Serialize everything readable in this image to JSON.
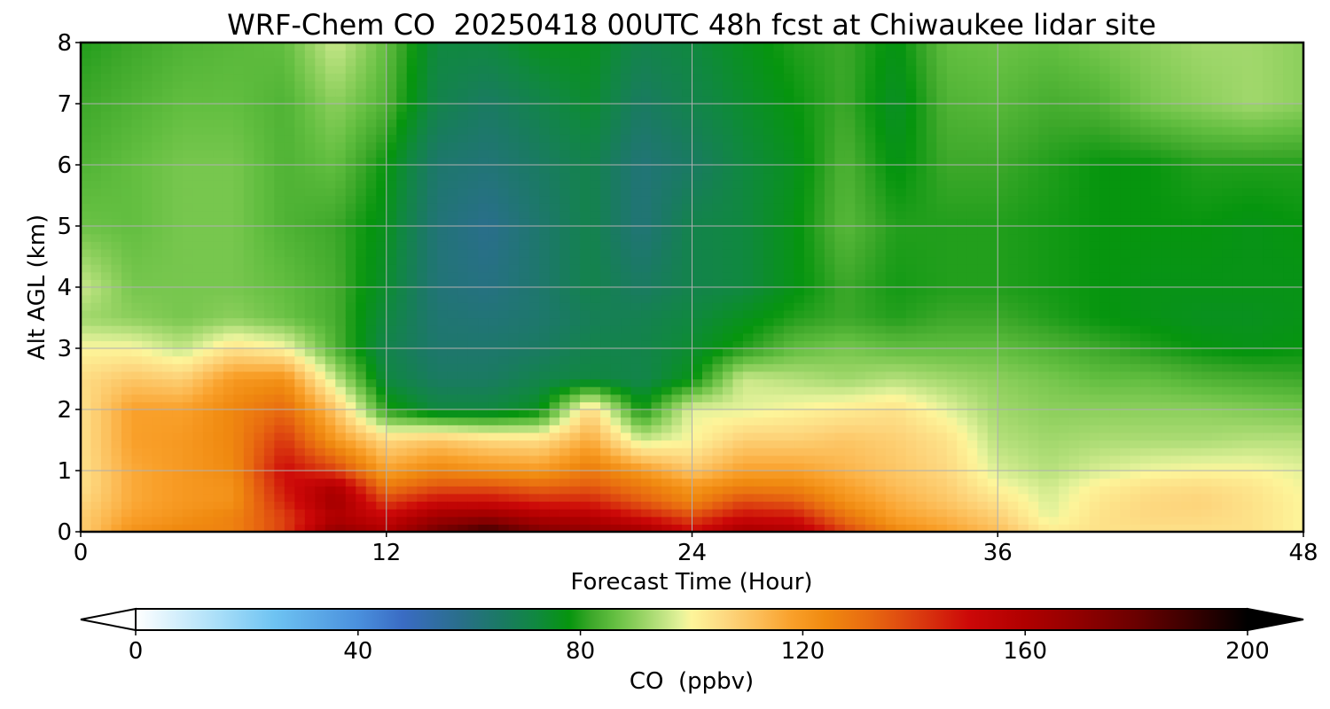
{
  "chart_data": {
    "type": "heatmap",
    "title": "WRF-Chem CO  20250418 00UTC 48h fcst at Chiwaukee lidar site",
    "xlabel": "Forecast Time (Hour)",
    "ylabel": "Alt AGL (km)",
    "xlim": [
      0,
      48
    ],
    "ylim": [
      0,
      8
    ],
    "xticks": [
      0,
      12,
      24,
      36,
      48
    ],
    "xtick_labels": [
      "0",
      "12",
      "24",
      "36",
      "48"
    ],
    "yticks": [
      0,
      1,
      2,
      3,
      4,
      5,
      6,
      7,
      8
    ],
    "ytick_labels": [
      "0",
      "1",
      "2",
      "3",
      "4",
      "5",
      "6",
      "7",
      "8"
    ],
    "grid": true,
    "x_hours": [
      0,
      2,
      4,
      6,
      8,
      10,
      12,
      14,
      16,
      18,
      20,
      22,
      24,
      26,
      28,
      30,
      32,
      34,
      36,
      38,
      40,
      42,
      44,
      46,
      48
    ],
    "z_km": [
      0,
      0.25,
      0.5,
      0.75,
      1,
      1.5,
      2,
      2.5,
      3,
      3.5,
      4,
      5,
      6,
      7,
      8
    ],
    "values_ppbv": [
      [
        108,
        122,
        125,
        126,
        140,
        170,
        160,
        178,
        190,
        175,
        170,
        165,
        150,
        164,
        160,
        140,
        125,
        118,
        112,
        102,
        104,
        104,
        104,
        104,
        100
      ],
      [
        108,
        118,
        122,
        126,
        140,
        160,
        152,
        165,
        168,
        160,
        158,
        148,
        138,
        150,
        148,
        130,
        118,
        114,
        108,
        98,
        104,
        106,
        106,
        104,
        100
      ],
      [
        106,
        116,
        120,
        122,
        145,
        165,
        140,
        150,
        150,
        145,
        145,
        135,
        125,
        138,
        135,
        122,
        115,
        110,
        104,
        97,
        103,
        106,
        107,
        104,
        100
      ],
      [
        104,
        116,
        120,
        122,
        148,
        160,
        128,
        136,
        136,
        132,
        135,
        128,
        120,
        126,
        125,
        118,
        112,
        108,
        100,
        96,
        101,
        104,
        105,
        103,
        99
      ],
      [
        104,
        116,
        120,
        124,
        150,
        140,
        118,
        125,
        122,
        120,
        128,
        120,
        110,
        118,
        118,
        114,
        110,
        106,
        97,
        94,
        97,
        99,
        100,
        100,
        98
      ],
      [
        104,
        118,
        120,
        125,
        142,
        120,
        106,
        110,
        106,
        105,
        116,
        96,
        100,
        108,
        108,
        110,
        108,
        104,
        94,
        92,
        93,
        93,
        93,
        94,
        94
      ],
      [
        104,
        118,
        118,
        125,
        132,
        110,
        80,
        72,
        72,
        76,
        106,
        78,
        98,
        98,
        100,
        102,
        104,
        98,
        92,
        90,
        90,
        90,
        90,
        89,
        88
      ],
      [
        105,
        110,
        108,
        120,
        122,
        95,
        72,
        66,
        66,
        70,
        72,
        70,
        77,
        96,
        94,
        92,
        94,
        92,
        90,
        88,
        86,
        86,
        84,
        83,
        82
      ],
      [
        100,
        100,
        95,
        104,
        100,
        84,
        70,
        64,
        64,
        66,
        70,
        70,
        74,
        80,
        86,
        88,
        86,
        86,
        86,
        84,
        82,
        80,
        78,
        77,
        78
      ],
      [
        92,
        90,
        88,
        90,
        87,
        83,
        72,
        63,
        62,
        64,
        68,
        69,
        72,
        76,
        80,
        82,
        80,
        82,
        82,
        80,
        78,
        77,
        76,
        76,
        77
      ],
      [
        96,
        88,
        88,
        88,
        86,
        83,
        74,
        62,
        60,
        64,
        70,
        66,
        70,
        72,
        77,
        82,
        79,
        80,
        80,
        79,
        78,
        77,
        77,
        77,
        77
      ],
      [
        87,
        86,
        88,
        88,
        84,
        82,
        76,
        62,
        58,
        64,
        70,
        62,
        70,
        72,
        77,
        85,
        80,
        80,
        80,
        79,
        78,
        78,
        78,
        77,
        78
      ],
      [
        84,
        86,
        88,
        88,
        84,
        86,
        78,
        64,
        62,
        66,
        70,
        62,
        66,
        72,
        76,
        84,
        77,
        82,
        82,
        80,
        78,
        78,
        80,
        80,
        80
      ],
      [
        82,
        84,
        86,
        86,
        84,
        90,
        84,
        70,
        66,
        70,
        74,
        66,
        70,
        74,
        78,
        82,
        75,
        84,
        85,
        83,
        84,
        88,
        90,
        92,
        90
      ],
      [
        80,
        82,
        84,
        85,
        86,
        96,
        86,
        72,
        72,
        76,
        76,
        70,
        72,
        76,
        80,
        82,
        77,
        86,
        87,
        86,
        88,
        90,
        92,
        92,
        90
      ]
    ],
    "colorbar": {
      "label": "CO  (ppbv)",
      "min": 0,
      "max": 200,
      "ticks": [
        0,
        40,
        80,
        120,
        160,
        200
      ],
      "tick_labels": [
        "0",
        "40",
        "80",
        "120",
        "160",
        "200"
      ],
      "extend": "both",
      "color_stops": [
        {
          "v": 0,
          "c": "#ffffff"
        },
        {
          "v": 15,
          "c": "#a8def8"
        },
        {
          "v": 25,
          "c": "#6ec3f2"
        },
        {
          "v": 40,
          "c": "#4a90dd"
        },
        {
          "v": 48,
          "c": "#3a6cc4"
        },
        {
          "v": 58,
          "c": "#2a6e8c"
        },
        {
          "v": 66,
          "c": "#1a7a62"
        },
        {
          "v": 72,
          "c": "#108840"
        },
        {
          "v": 78,
          "c": "#06950e"
        },
        {
          "v": 82,
          "c": "#3da82a"
        },
        {
          "v": 86,
          "c": "#62be40"
        },
        {
          "v": 90,
          "c": "#8ccf5c"
        },
        {
          "v": 94,
          "c": "#b6e07c"
        },
        {
          "v": 98,
          "c": "#e4f29a"
        },
        {
          "v": 100,
          "c": "#fdf59a"
        },
        {
          "v": 106,
          "c": "#fdd880"
        },
        {
          "v": 112,
          "c": "#fcbd58"
        },
        {
          "v": 118,
          "c": "#f9a02a"
        },
        {
          "v": 124,
          "c": "#f08a10"
        },
        {
          "v": 132,
          "c": "#e86a10"
        },
        {
          "v": 140,
          "c": "#dc4010"
        },
        {
          "v": 150,
          "c": "#cc0808"
        },
        {
          "v": 160,
          "c": "#b00000"
        },
        {
          "v": 170,
          "c": "#900000"
        },
        {
          "v": 180,
          "c": "#6a0000"
        },
        {
          "v": 190,
          "c": "#380000"
        },
        {
          "v": 200,
          "c": "#000000"
        }
      ]
    }
  }
}
